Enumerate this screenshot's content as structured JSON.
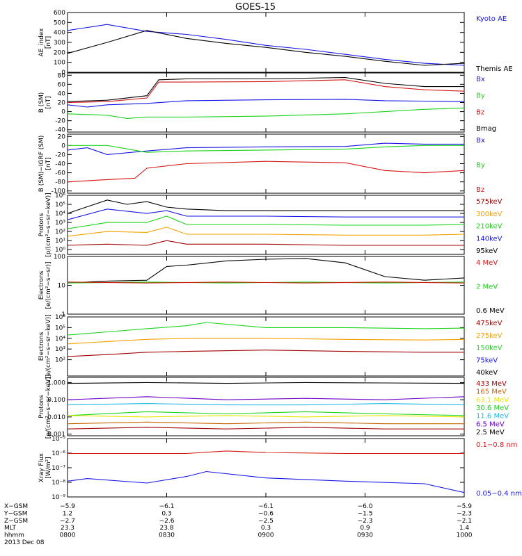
{
  "title": "GOES-15",
  "colors": {
    "black": "#000000",
    "blue": "#1515e6",
    "green": "#19d419",
    "red": "#d41515",
    "orange": "#f5a000",
    "cyan": "#19b8e6",
    "purple": "#6a00c8",
    "yellow": "#e6e600",
    "darkred": "#a00000",
    "brown": "#c86400"
  },
  "chart_data": [
    {
      "type": "line",
      "id": "ae",
      "ylabel": [
        "AE_index",
        "[nT]"
      ],
      "ylim": [
        0,
        600
      ],
      "yscale": "linear",
      "yticks": [
        0,
        100,
        200,
        300,
        400,
        500,
        600
      ],
      "yticklabels": [
        "0",
        "100",
        "200",
        "300",
        "400",
        "500",
        "600"
      ],
      "legend": [
        {
          "name": "Kyoto AE",
          "color": "blue"
        },
        {
          "name": "Themis AE",
          "color": "black"
        }
      ],
      "series": [
        {
          "name": "Kyoto AE",
          "color": "blue",
          "x": [
            0,
            0.1,
            0.2,
            0.3,
            0.4,
            0.5,
            0.6,
            0.7,
            0.8,
            0.9,
            1
          ],
          "y": [
            420,
            480,
            410,
            380,
            330,
            270,
            230,
            180,
            130,
            90,
            70
          ]
        },
        {
          "name": "Themis AE",
          "color": "black",
          "x": [
            0,
            0.1,
            0.2,
            0.3,
            0.4,
            0.5,
            0.6,
            0.7,
            0.8,
            0.9,
            1
          ],
          "y": [
            190,
            300,
            420,
            340,
            290,
            250,
            200,
            160,
            110,
            70,
            90
          ]
        }
      ]
    },
    {
      "type": "line",
      "id": "b",
      "ylabel": [
        "B (SM)",
        "[nT]"
      ],
      "ylim": [
        -45,
        85
      ],
      "yscale": "linear",
      "yticks": [
        -40,
        -20,
        0,
        20,
        40,
        60,
        80
      ],
      "yticklabels": [
        "-40",
        "-20",
        "0",
        "20",
        "40",
        "60",
        "80"
      ],
      "legend": [
        {
          "name": "Bx",
          "color": "blue"
        },
        {
          "name": "By",
          "color": "green"
        },
        {
          "name": "Bz",
          "color": "red"
        },
        {
          "name": "Bmag",
          "color": "black"
        }
      ],
      "series": [
        {
          "name": "Bmag",
          "color": "black",
          "x": [
            0,
            0.1,
            0.2,
            0.23,
            0.3,
            0.5,
            0.7,
            0.8,
            0.9,
            1
          ],
          "y": [
            22,
            25,
            35,
            70,
            72,
            72,
            75,
            62,
            55,
            55
          ]
        },
        {
          "name": "Bz",
          "color": "red",
          "x": [
            0,
            0.1,
            0.2,
            0.23,
            0.3,
            0.5,
            0.7,
            0.8,
            0.9,
            1
          ],
          "y": [
            20,
            22,
            30,
            65,
            65,
            66,
            70,
            55,
            48,
            45
          ]
        },
        {
          "name": "Bx",
          "color": "blue",
          "x": [
            0,
            0.05,
            0.1,
            0.2,
            0.3,
            0.5,
            0.7,
            0.8,
            0.9,
            1
          ],
          "y": [
            15,
            10,
            15,
            18,
            24,
            26,
            27,
            24,
            23,
            22
          ]
        },
        {
          "name": "By",
          "color": "green",
          "x": [
            0,
            0.1,
            0.15,
            0.2,
            0.3,
            0.5,
            0.7,
            0.8,
            0.9,
            1
          ],
          "y": [
            -5,
            -8,
            -15,
            -12,
            -12,
            -10,
            -5,
            0,
            5,
            8
          ]
        }
      ]
    },
    {
      "type": "line",
      "id": "bigrf",
      "ylabel": [
        "B (SM)−IGRF (SM)",
        "[nT]"
      ],
      "ylim": [
        -105,
        25
      ],
      "yscale": "linear",
      "yticks": [
        -100,
        -80,
        -60,
        -40,
        -20,
        0,
        20
      ],
      "yticklabels": [
        "-100",
        "-80",
        "-60",
        "-40",
        "-20",
        "0",
        "20"
      ],
      "legend": [
        {
          "name": "Bx",
          "color": "blue"
        },
        {
          "name": "By",
          "color": "green"
        },
        {
          "name": "Bz",
          "color": "red"
        }
      ],
      "series": [
        {
          "name": "Bx",
          "color": "blue",
          "x": [
            0,
            0.05,
            0.1,
            0.2,
            0.3,
            0.5,
            0.7,
            0.8,
            0.9,
            1
          ],
          "y": [
            -10,
            -5,
            -20,
            -12,
            -5,
            -3,
            -2,
            5,
            3,
            3
          ]
        },
        {
          "name": "By",
          "color": "green",
          "x": [
            0,
            0.1,
            0.2,
            0.3,
            0.5,
            0.7,
            0.8,
            0.9,
            1
          ],
          "y": [
            0,
            0,
            -15,
            -12,
            -10,
            -8,
            -3,
            0,
            0
          ]
        },
        {
          "name": "Bz",
          "color": "red",
          "x": [
            0,
            0.1,
            0.17,
            0.2,
            0.3,
            0.5,
            0.7,
            0.8,
            0.9,
            1
          ],
          "y": [
            -80,
            -75,
            -72,
            -50,
            -40,
            -35,
            -38,
            -55,
            -60,
            -55
          ]
        }
      ]
    },
    {
      "type": "line",
      "id": "pro1",
      "ylabel": [
        "Protons",
        "[p/(cm²−s−sr−keV)]"
      ],
      "ylim": [
        0.3,
        1000000
      ],
      "yscale": "log",
      "yticks": [
        1,
        10,
        100,
        1000,
        10000,
        100000,
        1000000
      ],
      "yticklabels": [
        "10⁰",
        "10¹",
        "10²",
        "10³",
        "10⁴",
        "10⁵",
        "10⁶"
      ],
      "legend": [
        {
          "name": "575keV",
          "color": "darkred"
        },
        {
          "name": "300keV",
          "color": "orange"
        },
        {
          "name": "210keV",
          "color": "green"
        },
        {
          "name": "140keV",
          "color": "blue"
        },
        {
          "name": "95keV",
          "color": "black"
        }
      ],
      "series": [
        {
          "name": "95keV",
          "color": "black",
          "x": [
            0,
            0.1,
            0.15,
            0.2,
            0.25,
            0.3,
            0.4,
            0.5,
            0.7,
            0.9,
            1
          ],
          "y": [
            10000,
            300000,
            100000,
            200000,
            50000,
            30000,
            20000,
            20000,
            20000,
            20000,
            20000
          ]
        },
        {
          "name": "140keV",
          "color": "blue",
          "x": [
            0,
            0.1,
            0.2,
            0.25,
            0.3,
            0.5,
            0.7,
            0.9,
            1
          ],
          "y": [
            2000,
            30000,
            10000,
            20000,
            5000,
            5000,
            4000,
            4000,
            4000
          ]
        },
        {
          "name": "210keV",
          "color": "green",
          "x": [
            0,
            0.1,
            0.2,
            0.25,
            0.3,
            0.5,
            0.7,
            0.9,
            1
          ],
          "y": [
            200,
            1000,
            1000,
            5000,
            600,
            600,
            500,
            500,
            600
          ]
        },
        {
          "name": "300keV",
          "color": "orange",
          "x": [
            0,
            0.1,
            0.2,
            0.25,
            0.3,
            0.5,
            0.7,
            0.9,
            1
          ],
          "y": [
            30,
            100,
            80,
            300,
            50,
            50,
            40,
            40,
            50
          ]
        },
        {
          "name": "575keV",
          "color": "darkred",
          "x": [
            0,
            0.1,
            0.2,
            0.25,
            0.3,
            0.5,
            0.7,
            0.9,
            1
          ],
          "y": [
            3,
            4,
            3,
            10,
            4,
            4,
            3,
            3,
            3
          ]
        }
      ]
    },
    {
      "type": "line",
      "id": "ele1",
      "ylabel": [
        "Electrons",
        "[e/(cm²−s−sr)]"
      ],
      "ylim": [
        1,
        100
      ],
      "yscale": "log",
      "yticks": [
        1,
        10,
        100
      ],
      "yticklabels": [
        "1",
        "10",
        "100"
      ],
      "legend": [
        {
          "name": "4 MeV",
          "color": "red"
        },
        {
          "name": "2 MeV",
          "color": "green"
        },
        {
          "name": "0.6 MeV",
          "color": "black"
        }
      ],
      "series": [
        {
          "name": "0.6 MeV",
          "color": "black",
          "x": [
            0,
            0.1,
            0.2,
            0.25,
            0.3,
            0.4,
            0.5,
            0.6,
            0.7,
            0.8,
            0.9,
            1
          ],
          "y": [
            12,
            14,
            15,
            45,
            50,
            70,
            80,
            85,
            60,
            20,
            15,
            18
          ]
        },
        {
          "name": "2 MeV",
          "color": "green",
          "x": [
            0,
            0.2,
            0.4,
            0.6,
            0.8,
            1
          ],
          "y": [
            12,
            13,
            12,
            13,
            12,
            13
          ]
        },
        {
          "name": "4 MeV",
          "color": "red",
          "x": [
            0,
            0.2,
            0.4,
            0.6,
            0.8,
            1
          ],
          "y": [
            13,
            12,
            13,
            12,
            13,
            12
          ]
        }
      ]
    },
    {
      "type": "line",
      "id": "ele2",
      "ylabel": [
        "Electrons",
        "[e/(cm²−s−sr−keV)]"
      ],
      "ylim": [
        3,
        1000000
      ],
      "yscale": "log",
      "yticks": [
        100,
        1000,
        10000,
        100000,
        1000000
      ],
      "yticklabels": [
        "10²",
        "10³",
        "10⁴",
        "10⁵",
        "10⁶"
      ],
      "legend": [
        {
          "name": "475keV",
          "color": "darkred"
        },
        {
          "name": "275keV",
          "color": "orange"
        },
        {
          "name": "150keV",
          "color": "green"
        },
        {
          "name": "75keV",
          "color": "blue"
        },
        {
          "name": "40keV",
          "color": "black"
        }
      ],
      "series": [
        {
          "name": "150keV",
          "color": "green",
          "x": [
            0,
            0.1,
            0.2,
            0.3,
            0.35,
            0.5,
            0.7,
            0.9,
            1
          ],
          "y": [
            20000,
            40000,
            80000,
            150000,
            300000,
            100000,
            100000,
            80000,
            90000
          ]
        },
        {
          "name": "275keV",
          "color": "orange",
          "x": [
            0,
            0.1,
            0.2,
            0.3,
            0.5,
            0.7,
            0.9,
            1
          ],
          "y": [
            3000,
            5000,
            8000,
            10000,
            10000,
            8000,
            7000,
            8000
          ]
        },
        {
          "name": "475keV",
          "color": "darkred",
          "x": [
            0,
            0.1,
            0.2,
            0.3,
            0.5,
            0.7,
            0.9,
            1
          ],
          "y": [
            200,
            300,
            500,
            600,
            800,
            600,
            500,
            500
          ]
        }
      ]
    },
    {
      "type": "line",
      "id": "pro2",
      "ylabel": [
        "Protons",
        "[p/(cm²−s−sr−keV)]"
      ],
      "ylim": [
        0.0008,
        2
      ],
      "yscale": "log",
      "yticks": [
        0.001,
        0.01,
        0.1,
        1
      ],
      "yticklabels": [
        "0.001",
        "0.010",
        "0.100",
        "1.000"
      ],
      "legend": [
        {
          "name": "433 MeV",
          "color": "darkred"
        },
        {
          "name": "165 MeV",
          "color": "brown"
        },
        {
          "name": "63.1 MeV",
          "color": "yellow"
        },
        {
          "name": "30.6 MeV",
          "color": "green"
        },
        {
          "name": "11.6 MeV",
          "color": "cyan"
        },
        {
          "name": "6.5 MeV",
          "color": "purple"
        },
        {
          "name": "2.5 MeV",
          "color": "black"
        }
      ],
      "series": [
        {
          "name": "2.5 MeV",
          "color": "black",
          "x": [
            0,
            0.2,
            0.4,
            0.6,
            0.8,
            1
          ],
          "y": [
            0.9,
            1.0,
            0.9,
            1.0,
            0.95,
            0.9
          ]
        },
        {
          "name": "6.5 MeV",
          "color": "purple",
          "x": [
            0,
            0.2,
            0.4,
            0.6,
            0.8,
            1
          ],
          "y": [
            0.1,
            0.15,
            0.1,
            0.12,
            0.1,
            0.15
          ]
        },
        {
          "name": "11.6 MeV",
          "color": "cyan",
          "x": [
            0,
            0.2,
            0.4,
            0.6,
            0.8,
            1
          ],
          "y": [
            0.05,
            0.06,
            0.05,
            0.05,
            0.06,
            0.05
          ]
        },
        {
          "name": "30.6 MeV",
          "color": "green",
          "x": [
            0,
            0.2,
            0.4,
            0.6,
            0.8,
            1
          ],
          "y": [
            0.012,
            0.02,
            0.015,
            0.02,
            0.015,
            0.012
          ]
        },
        {
          "name": "63.1 MeV",
          "color": "yellow",
          "x": [
            0,
            0.2,
            0.4,
            0.6,
            0.8,
            1
          ],
          "y": [
            0.012,
            0.01,
            0.012,
            0.01,
            0.012,
            0.01
          ]
        },
        {
          "name": "165 MeV",
          "color": "brown",
          "x": [
            0,
            0.2,
            0.4,
            0.6,
            0.8,
            1
          ],
          "y": [
            0.004,
            0.005,
            0.004,
            0.005,
            0.004,
            0.004
          ]
        },
        {
          "name": "433 MeV",
          "color": "darkred",
          "x": [
            0,
            0.2,
            0.4,
            0.6,
            0.8,
            1
          ],
          "y": [
            0.002,
            0.0025,
            0.002,
            0.0025,
            0.002,
            0.002
          ]
        }
      ]
    },
    {
      "type": "line",
      "id": "xray",
      "ylabel": [
        "Xray Flux",
        "[W/m²]"
      ],
      "ylim": [
        1e-09,
        1e-05
      ],
      "yscale": "log",
      "yticks": [
        1e-09,
        1e-08,
        1e-07,
        1e-06,
        1e-05
      ],
      "yticklabels": [
        "10⁻⁹",
        "10⁻⁸",
        "10⁻⁷",
        "10⁻⁶",
        "10⁻⁵"
      ],
      "legend": [
        {
          "name": "0.1−0.8 nm",
          "color": "red"
        },
        {
          "name": "0.05−0.4 nm",
          "color": "blue"
        }
      ],
      "series": [
        {
          "name": "0.1−0.8 nm",
          "color": "red",
          "x": [
            0,
            0.3,
            0.4,
            0.5,
            0.7,
            1
          ],
          "y": [
            9.5e-07,
            9.5e-07,
            1.4e-06,
            1.1e-06,
            9.5e-07,
            9.5e-07
          ]
        },
        {
          "name": "0.05−0.4 nm",
          "color": "blue",
          "x": [
            0,
            0.05,
            0.2,
            0.3,
            0.35,
            0.5,
            0.7,
            0.9,
            0.95,
            1
          ],
          "y": [
            1.2e-08,
            1.8e-08,
            9e-09,
            2.5e-08,
            5.5e-08,
            2e-08,
            1.2e-08,
            8e-09,
            4e-09,
            2e-09
          ]
        }
      ]
    }
  ],
  "xaxis": {
    "tick_x": [
      0,
      0.25,
      0.5,
      0.75,
      1
    ],
    "rows": [
      {
        "label": "X−GSM",
        "values": [
          "−5.9",
          "−6.1",
          "−6.1",
          "−6.0",
          "−5.9"
        ]
      },
      {
        "label": "Y−GSM",
        "values": [
          "1.2",
          "0.3",
          "−0.6",
          "−1.5",
          "−2.3"
        ]
      },
      {
        "label": "Z−GSM",
        "values": [
          "−2.7",
          "−2.6",
          "−2.5",
          "−2.3",
          "−2.1"
        ]
      },
      {
        "label": "MLT",
        "values": [
          "23.3",
          "23.8",
          "0.3",
          "0.9",
          "1.4"
        ]
      },
      {
        "label": "hhmm",
        "values": [
          "0800",
          "0830",
          "0900",
          "0930",
          "1000"
        ]
      }
    ],
    "date": "2013 Dec 08"
  }
}
